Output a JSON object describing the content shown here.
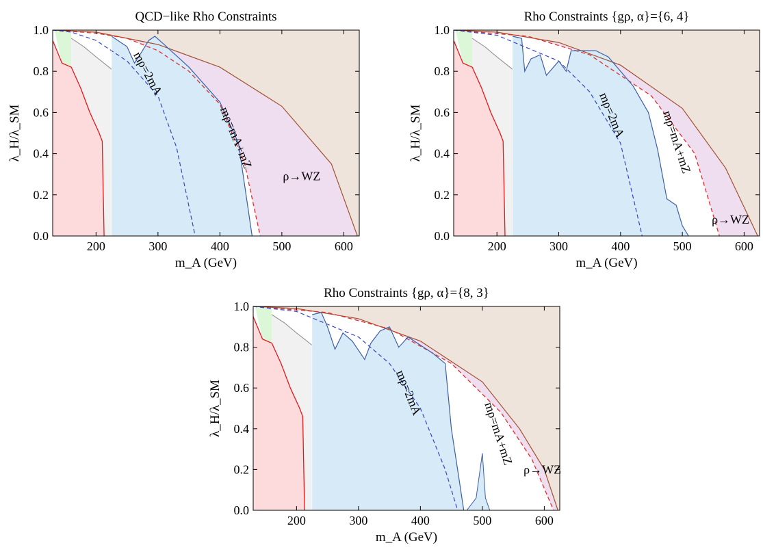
{
  "chart_data": [
    {
      "type": "area",
      "title": "QCD−like Rho Constraints",
      "xlabel": "m_A (GeV)",
      "ylabel": "λ_H/λ_SM",
      "xlim": [
        130,
        625
      ],
      "ylim": [
        0,
        1
      ],
      "xticks": [
        200,
        300,
        400,
        500,
        600
      ],
      "yticks": [
        0.0,
        0.2,
        0.4,
        0.6,
        0.8,
        1.0
      ],
      "annotations": [
        {
          "text": "ρ→WZ",
          "x": 532,
          "y": 0.27
        },
        {
          "text": "mρ=2mA",
          "x": 278,
          "y": 0.78,
          "angle": 62
        },
        {
          "text": "mρ=mA+mZ",
          "x": 420,
          "y": 0.47,
          "angle": 68
        }
      ],
      "curves": {
        "kinematic_edge": [
          [
            130,
            1.0
          ],
          [
            200,
            0.99
          ],
          [
            300,
            0.93
          ],
          [
            400,
            0.82
          ],
          [
            500,
            0.63
          ],
          [
            580,
            0.35
          ],
          [
            622,
            0.0
          ]
        ],
        "mrho_eq_mA_plus_mZ": [
          [
            130,
            1.0
          ],
          [
            200,
            0.985
          ],
          [
            250,
            0.96
          ],
          [
            300,
            0.9
          ],
          [
            350,
            0.8
          ],
          [
            400,
            0.64
          ],
          [
            440,
            0.35
          ],
          [
            465,
            0.0
          ]
        ],
        "mrho_eq_2mA": [
          [
            130,
            1.0
          ],
          [
            160,
            0.99
          ],
          [
            200,
            0.95
          ],
          [
            250,
            0.85
          ],
          [
            300,
            0.68
          ],
          [
            330,
            0.43
          ],
          [
            360,
            0.0
          ]
        ],
        "exclusion_boundary": [
          [
            225,
            0.97
          ],
          [
            250,
            0.92
          ],
          [
            262,
            0.84
          ],
          [
            275,
            0.9
          ],
          [
            285,
            0.95
          ],
          [
            295,
            0.97
          ],
          [
            310,
            0.93
          ],
          [
            350,
            0.82
          ],
          [
            400,
            0.65
          ],
          [
            430,
            0.45
          ],
          [
            452,
            0.0
          ]
        ],
        "red_boundary": [
          [
            130,
            0.95
          ],
          [
            145,
            0.84
          ],
          [
            160,
            0.82
          ],
          [
            175,
            0.72
          ],
          [
            190,
            0.6
          ],
          [
            205,
            0.5
          ],
          [
            210,
            0.46
          ],
          [
            213,
            0.0
          ]
        ],
        "grey_boundary": [
          [
            160,
            0.96
          ],
          [
            180,
            0.92
          ],
          [
            200,
            0.87
          ],
          [
            225,
            0.81
          ]
        ],
        "green_region": [
          [
            133,
            1.0
          ],
          [
            160,
            1.0
          ],
          [
            160,
            0.82
          ],
          [
            145,
            0.84
          ]
        ]
      }
    },
    {
      "type": "area",
      "title": "Rho Constraints {gρ, α}={6, 4}",
      "xlabel": "m_A (GeV)",
      "ylabel": "λ_H/λ_SM",
      "xlim": [
        130,
        625
      ],
      "ylim": [
        0,
        1
      ],
      "xticks": [
        200,
        300,
        400,
        500,
        600
      ],
      "yticks": [
        0.0,
        0.2,
        0.4,
        0.6,
        0.8,
        1.0
      ],
      "annotations": [
        {
          "text": "ρ→WZ",
          "x": 578,
          "y": 0.06
        },
        {
          "text": "mρ=2mA",
          "x": 380,
          "y": 0.58,
          "angle": 68
        },
        {
          "text": "mρ=mA+mZ",
          "x": 485,
          "y": 0.45,
          "angle": 72
        }
      ],
      "curves": {
        "kinematic_edge": [
          [
            130,
            1.0
          ],
          [
            200,
            0.99
          ],
          [
            300,
            0.94
          ],
          [
            400,
            0.83
          ],
          [
            500,
            0.62
          ],
          [
            570,
            0.33
          ],
          [
            622,
            0.0
          ]
        ],
        "mrho_eq_mA_plus_mZ": [
          [
            130,
            1.0
          ],
          [
            250,
            0.97
          ],
          [
            350,
            0.88
          ],
          [
            450,
            0.68
          ],
          [
            520,
            0.4
          ],
          [
            560,
            0.0
          ]
        ],
        "mrho_eq_2mA": [
          [
            130,
            1.0
          ],
          [
            200,
            0.975
          ],
          [
            300,
            0.85
          ],
          [
            350,
            0.7
          ],
          [
            400,
            0.45
          ],
          [
            435,
            0.0
          ]
        ],
        "exclusion_boundary": [
          [
            225,
            0.97
          ],
          [
            240,
            0.96
          ],
          [
            245,
            0.8
          ],
          [
            255,
            0.86
          ],
          [
            270,
            0.88
          ],
          [
            280,
            0.78
          ],
          [
            300,
            0.85
          ],
          [
            312,
            0.8
          ],
          [
            320,
            0.9
          ],
          [
            340,
            0.9
          ],
          [
            360,
            0.9
          ],
          [
            380,
            0.87
          ],
          [
            420,
            0.73
          ],
          [
            445,
            0.6
          ],
          [
            460,
            0.42
          ],
          [
            475,
            0.18
          ],
          [
            490,
            0.15
          ],
          [
            500,
            0.05
          ],
          [
            510,
            0.0
          ]
        ],
        "red_boundary": [
          [
            130,
            0.95
          ],
          [
            145,
            0.84
          ],
          [
            160,
            0.82
          ],
          [
            175,
            0.72
          ],
          [
            190,
            0.6
          ],
          [
            205,
            0.5
          ],
          [
            210,
            0.46
          ],
          [
            213,
            0.0
          ]
        ],
        "grey_boundary": [
          [
            160,
            0.96
          ],
          [
            180,
            0.92
          ],
          [
            200,
            0.87
          ],
          [
            225,
            0.81
          ]
        ],
        "green_region": [
          [
            133,
            1.0
          ],
          [
            160,
            1.0
          ],
          [
            160,
            0.82
          ],
          [
            145,
            0.84
          ]
        ]
      }
    },
    {
      "type": "area",
      "title": "Rho Constraints {gρ, α}={8, 3}",
      "xlabel": "m_A (GeV)",
      "ylabel": "λ_H/λ_SM",
      "xlim": [
        130,
        625
      ],
      "ylim": [
        0,
        1
      ],
      "xticks": [
        200,
        300,
        400,
        500,
        600
      ],
      "yticks": [
        0.0,
        0.2,
        0.4,
        0.6,
        0.8,
        1.0
      ],
      "annotations": [
        {
          "text": "ρ→WZ",
          "x": 597,
          "y": 0.18
        },
        {
          "text": "mρ=2mA",
          "x": 375,
          "y": 0.57,
          "angle": 68
        },
        {
          "text": "mρ=mA+mZ",
          "x": 520,
          "y": 0.37,
          "angle": 72
        }
      ],
      "curves": {
        "kinematic_edge": [
          [
            130,
            1.0
          ],
          [
            200,
            0.99
          ],
          [
            300,
            0.94
          ],
          [
            400,
            0.83
          ],
          [
            500,
            0.63
          ],
          [
            560,
            0.4
          ],
          [
            600,
            0.2
          ],
          [
            622,
            0.0
          ]
        ],
        "mrho_eq_mA_plus_mZ": [
          [
            130,
            1.0
          ],
          [
            250,
            0.97
          ],
          [
            350,
            0.89
          ],
          [
            450,
            0.72
          ],
          [
            530,
            0.48
          ],
          [
            580,
            0.25
          ],
          [
            615,
            0.0
          ]
        ],
        "mrho_eq_2mA": [
          [
            130,
            1.0
          ],
          [
            200,
            0.975
          ],
          [
            300,
            0.85
          ],
          [
            350,
            0.72
          ],
          [
            400,
            0.5
          ],
          [
            440,
            0.2
          ],
          [
            460,
            0.0
          ]
        ],
        "exclusion_boundary": [
          [
            225,
            0.96
          ],
          [
            240,
            0.97
          ],
          [
            250,
            0.9
          ],
          [
            262,
            0.79
          ],
          [
            275,
            0.87
          ],
          [
            290,
            0.83
          ],
          [
            310,
            0.74
          ],
          [
            320,
            0.82
          ],
          [
            335,
            0.88
          ],
          [
            350,
            0.9
          ],
          [
            365,
            0.8
          ],
          [
            380,
            0.85
          ],
          [
            400,
            0.81
          ],
          [
            420,
            0.77
          ],
          [
            440,
            0.72
          ],
          [
            450,
            0.4
          ],
          [
            460,
            0.2
          ],
          [
            470,
            0.0
          ]
        ],
        "spike": [
          [
            475,
            0.0
          ],
          [
            490,
            0.06
          ],
          [
            500,
            0.28
          ],
          [
            505,
            0.06
          ],
          [
            512,
            0.0
          ]
        ],
        "red_boundary": [
          [
            130,
            0.95
          ],
          [
            145,
            0.84
          ],
          [
            160,
            0.82
          ],
          [
            175,
            0.72
          ],
          [
            190,
            0.6
          ],
          [
            205,
            0.5
          ],
          [
            210,
            0.46
          ],
          [
            213,
            0.0
          ]
        ],
        "grey_boundary": [
          [
            160,
            0.96
          ],
          [
            180,
            0.92
          ],
          [
            200,
            0.87
          ],
          [
            225,
            0.81
          ]
        ],
        "green_region": [
          [
            133,
            1.0
          ],
          [
            160,
            1.0
          ],
          [
            160,
            0.82
          ],
          [
            145,
            0.84
          ]
        ]
      }
    }
  ],
  "colors": {
    "brown_region": "#efe4dc",
    "purple_region": "#efddf0",
    "blue_region": "#d6eaf8",
    "grey_region": "#f1f1f1",
    "red_region": "#fddadb",
    "green_region": "#dbf7d8",
    "kinematic_edge": "#a0522d",
    "blue_line": "#3f5ea8",
    "red_line": "#e01a1a",
    "dashed_red": "#e32d2d",
    "dashed_blue": "#3344cc",
    "grey_line": "#888888"
  }
}
